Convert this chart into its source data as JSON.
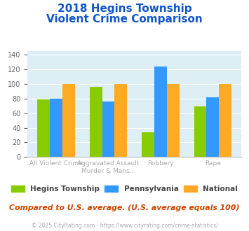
{
  "title_line1": "2018 Hegins Township",
  "title_line2": "Violent Crime Comparison",
  "category_labels_line1": [
    "All Violent Crime",
    "Aggravated Assault",
    "Robbery",
    "Rape"
  ],
  "category_labels_line2": [
    "",
    "Murder & Mans...",
    "",
    ""
  ],
  "series": {
    "Hegins Township": [
      79,
      96,
      34,
      69
    ],
    "Pennsylvania": [
      80,
      76,
      124,
      82
    ],
    "National": [
      100,
      100,
      100,
      100
    ]
  },
  "colors": {
    "Hegins Township": "#88cc00",
    "Pennsylvania": "#3399ff",
    "National": "#ffaa22"
  },
  "ylim": [
    0,
    145
  ],
  "yticks": [
    0,
    20,
    40,
    60,
    80,
    100,
    120,
    140
  ],
  "plot_bg_color": "#ddeef5",
  "title_color": "#1155cc",
  "axis_label_color": "#aaaaaa",
  "footer_text": "Compared to U.S. average. (U.S. average equals 100)",
  "copyright_text": "© 2025 CityRating.com - https://www.cityrating.com/crime-statistics/",
  "footer_color": "#cc4400",
  "copyright_color": "#aaaaaa",
  "legend_text_color": "#444444"
}
